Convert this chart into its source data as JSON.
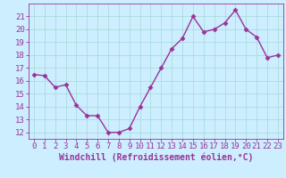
{
  "x": [
    0,
    1,
    2,
    3,
    4,
    5,
    6,
    7,
    8,
    9,
    10,
    11,
    12,
    13,
    14,
    15,
    16,
    17,
    18,
    19,
    20,
    21,
    22,
    23
  ],
  "y": [
    16.5,
    16.4,
    15.5,
    15.7,
    14.1,
    13.3,
    13.3,
    12.0,
    12.0,
    12.3,
    14.0,
    15.5,
    17.0,
    18.5,
    19.3,
    21.0,
    19.8,
    20.0,
    20.5,
    21.5,
    20.0,
    19.4,
    17.8,
    18.0
  ],
  "line_color": "#993399",
  "marker": "D",
  "markersize": 2.5,
  "linewidth": 1.0,
  "xlabel": "Windchill (Refroidissement éolien,°C)",
  "xlabel_fontsize": 7,
  "background_color": "#cceeff",
  "grid_color": "#aadddd",
  "tick_color": "#993399",
  "ylim": [
    11.5,
    22.0
  ],
  "xlim": [
    -0.5,
    23.5
  ],
  "yticks": [
    12,
    13,
    14,
    15,
    16,
    17,
    18,
    19,
    20,
    21
  ],
  "xticks": [
    0,
    1,
    2,
    3,
    4,
    5,
    6,
    7,
    8,
    9,
    10,
    11,
    12,
    13,
    14,
    15,
    16,
    17,
    18,
    19,
    20,
    21,
    22,
    23
  ],
  "tick_fontsize": 6.5,
  "spine_color": "#993399",
  "fig_width": 3.2,
  "fig_height": 2.0,
  "dpi": 100
}
